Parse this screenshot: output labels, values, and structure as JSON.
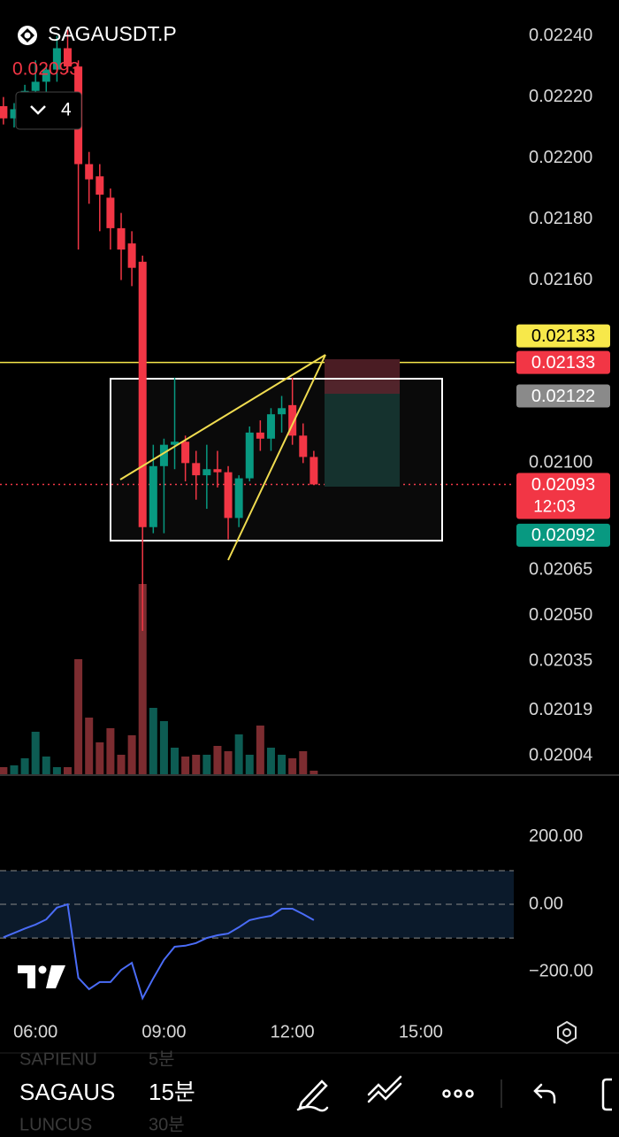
{
  "header": {
    "symbol": "SAGAUSDT.P",
    "last_price": "0.02093",
    "indicator_count": "4"
  },
  "chart_data": {
    "type": "candlestick",
    "x": [
      5.25,
      5.5,
      5.75,
      6.0,
      6.25,
      6.5,
      6.75,
      7.0,
      7.25,
      7.5,
      7.75,
      8.0,
      8.25,
      8.5,
      8.75,
      9.0,
      9.25,
      9.5,
      9.75,
      10.0,
      10.25,
      10.5,
      10.75,
      11.0,
      11.25,
      11.5,
      11.75,
      12.0,
      12.25,
      12.5
    ],
    "open": [
      0.02217,
      0.02213,
      0.02216,
      0.02222,
      0.02225,
      0.02229,
      0.02236,
      0.0223,
      0.02198,
      0.02194,
      0.02187,
      0.02177,
      0.02172,
      0.02166,
      0.02079,
      0.02099,
      0.02106,
      0.02107,
      0.021,
      0.02096,
      0.02098,
      0.02097,
      0.02082,
      0.02095,
      0.0211,
      0.02108,
      0.02116,
      0.02119,
      0.02109,
      0.02102
    ],
    "high": [
      0.0222,
      0.02218,
      0.02224,
      0.02232,
      0.0223,
      0.0224,
      0.02242,
      0.02232,
      0.02202,
      0.02198,
      0.0219,
      0.02182,
      0.02176,
      0.02168,
      0.02106,
      0.02108,
      0.02128,
      0.02109,
      0.02104,
      0.02106,
      0.02104,
      0.02099,
      0.02096,
      0.02112,
      0.02114,
      0.02118,
      0.02122,
      0.02128,
      0.02113,
      0.02104
    ],
    "low": [
      0.02211,
      0.0221,
      0.02214,
      0.02219,
      0.0222,
      0.02225,
      0.02228,
      0.0217,
      0.02185,
      0.02176,
      0.0217,
      0.0216,
      0.02158,
      0.02045,
      0.02077,
      0.02077,
      0.02098,
      0.02094,
      0.02088,
      0.02085,
      0.02092,
      0.02075,
      0.02079,
      0.02094,
      0.02104,
      0.02104,
      0.0211,
      0.02106,
      0.021,
      0.02093
    ],
    "close": [
      0.02213,
      0.02216,
      0.02222,
      0.02225,
      0.02229,
      0.02236,
      0.0223,
      0.02198,
      0.02193,
      0.02188,
      0.02177,
      0.0217,
      0.02164,
      0.02079,
      0.02099,
      0.02106,
      0.02107,
      0.021,
      0.02096,
      0.02098,
      0.02097,
      0.02082,
      0.02095,
      0.0211,
      0.02108,
      0.02116,
      0.02118,
      0.02109,
      0.02102,
      0.02093
    ],
    "volume": [
      8,
      10,
      18,
      48,
      20,
      8,
      8,
      130,
      64,
      36,
      52,
      22,
      44,
      215,
      75,
      60,
      30,
      20,
      22,
      22,
      32,
      26,
      45,
      22,
      55,
      30,
      22,
      18,
      26,
      4
    ],
    "volume_ylim": [
      0,
      250
    ],
    "up_color": "#089981",
    "down_color": "#f23645",
    "up_volume_color": "#0d5c53",
    "down_volume_color": "#7c2c30",
    "ylim": [
      0.01998,
      0.02246
    ],
    "yticks": [
      {
        "value": 0.0224,
        "label": "0.02240"
      },
      {
        "value": 0.0222,
        "label": "0.02220"
      },
      {
        "value": 0.022,
        "label": "0.02200"
      },
      {
        "value": 0.0218,
        "label": "0.02180"
      },
      {
        "value": 0.0216,
        "label": "0.02160"
      },
      {
        "value": 0.021,
        "label": "0.02100"
      },
      {
        "value": 0.02065,
        "label": "0.02065"
      },
      {
        "value": 0.0205,
        "label": "0.02050"
      },
      {
        "value": 0.02035,
        "label": "0.02035"
      },
      {
        "value": 0.02019,
        "label": "0.02019"
      },
      {
        "value": 0.02004,
        "label": "0.02004"
      }
    ],
    "xlim": [
      5.17,
      17.15
    ],
    "xticks": [
      {
        "value": 6,
        "label": "06:00"
      },
      {
        "value": 9,
        "label": "09:00"
      },
      {
        "value": 12,
        "label": "12:00"
      },
      {
        "value": 15,
        "label": "15:00"
      }
    ],
    "price_labels": [
      {
        "value": 0.02133,
        "label": "0.02133",
        "color": "#f7e84a",
        "text_color": "#000000"
      },
      {
        "value": 0.02133,
        "label": "0.02133",
        "color": "#f23645",
        "text_color": "#ffffff"
      },
      {
        "value": 0.02122,
        "label": "0.02122",
        "color": "#8a8a8a",
        "text_color": "#ffffff"
      },
      {
        "value": 0.02093,
        "label": "0.02093",
        "color": "#f23645",
        "text_color": "#ffffff",
        "countdown": "12:03"
      },
      {
        "value": 0.02092,
        "label": "0.02092",
        "color": "#089981",
        "text_color": "#ffffff"
      }
    ]
  },
  "indicator": {
    "type": "line",
    "color": "#4a6cf7",
    "x": [
      5.25,
      5.5,
      5.75,
      6.0,
      6.25,
      6.5,
      6.75,
      7.0,
      7.25,
      7.5,
      7.75,
      8.0,
      8.25,
      8.5,
      8.75,
      9.0,
      9.25,
      9.5,
      9.75,
      10.0,
      10.25,
      10.5,
      10.75,
      11.0,
      11.25,
      11.5,
      11.75,
      12.0,
      12.25,
      12.5
    ],
    "values": [
      -98,
      -85,
      -72,
      -60,
      -45,
      -10,
      0,
      -218,
      -252,
      -231,
      -231,
      -195,
      -174,
      -279,
      -220,
      -165,
      -126,
      -123,
      -115,
      -100,
      -92,
      -87,
      -68,
      -47,
      -40,
      -34,
      -13,
      -13,
      -29,
      -47
    ],
    "band": [
      -100,
      100
    ],
    "ylim": [
      -310,
      360
    ],
    "yticks": [
      {
        "value": 200,
        "label": "200.00"
      },
      {
        "value": 0,
        "label": "0.00"
      },
      {
        "value": -200,
        "label": "−200.00"
      }
    ]
  },
  "toolbar": {
    "symbol": "SAGAUS",
    "interval": "15분",
    "prev_symbol": "SAPIENU",
    "prev_interval": "5분",
    "next_symbol": "LUNCUS",
    "next_interval": "30분"
  }
}
